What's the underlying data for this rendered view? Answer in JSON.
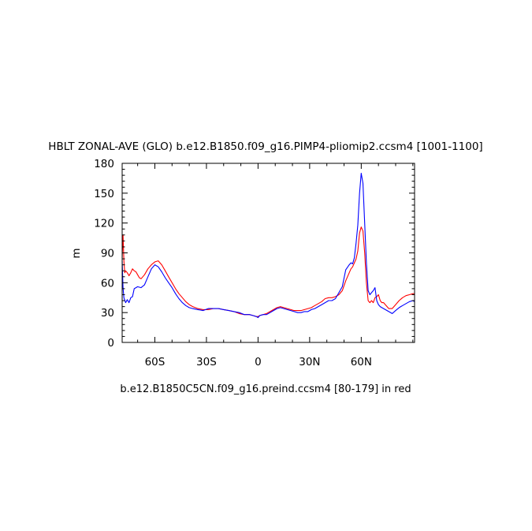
{
  "chart_data": {
    "type": "line",
    "title": "HBLT ZONAL-AVE (GLO) b.e12.B1850.f09_g16.PIMP4-pliomip2.ccsm4 [1001-1100]",
    "subtitle": "b.e12.B1850C5CN.f09_g16.preind.ccsm4 [80-179] in red",
    "xlabel": "",
    "ylabel": "m",
    "xlim": [
      -79,
      91
    ],
    "ylim": [
      0,
      180
    ],
    "x_ticks": [
      {
        "value": -60,
        "label": "60S"
      },
      {
        "value": -30,
        "label": "30S"
      },
      {
        "value": 0,
        "label": "0"
      },
      {
        "value": 30,
        "label": "30N"
      },
      {
        "value": 60,
        "label": "60N"
      }
    ],
    "y_ticks": [
      {
        "value": 0,
        "label": "0"
      },
      {
        "value": 30,
        "label": "30"
      },
      {
        "value": 60,
        "label": "60"
      },
      {
        "value": 90,
        "label": "90"
      },
      {
        "value": 120,
        "label": "120"
      },
      {
        "value": 150,
        "label": "150"
      },
      {
        "value": 180,
        "label": "180"
      }
    ],
    "grid": false,
    "series": [
      {
        "color": "#0000ff",
        "x": [
          -79,
          -78.5,
          -78,
          -77,
          -76,
          -75,
          -74,
          -73,
          -72,
          -71,
          -70,
          -68,
          -66,
          -64,
          -62,
          -60,
          -58,
          -56,
          -54,
          -52,
          -50,
          -48,
          -46,
          -44,
          -42,
          -40,
          -38,
          -35,
          -32,
          -29,
          -26,
          -23,
          -20,
          -17,
          -14,
          -11,
          -8,
          -5,
          -3,
          -1,
          0,
          1,
          3,
          5,
          7,
          9,
          11,
          13,
          15,
          17,
          19,
          21,
          23,
          25,
          27,
          29,
          31,
          33,
          35,
          37,
          39,
          41,
          43,
          45,
          47,
          49,
          51,
          53,
          54,
          55,
          56,
          57,
          58,
          59,
          60,
          61,
          62,
          63,
          64,
          65,
          66,
          67,
          68,
          69,
          70,
          71,
          72,
          73,
          74,
          76,
          78,
          80,
          82,
          84,
          86,
          88,
          90,
          91
        ],
        "y": [
          82,
          55,
          45,
          40,
          43,
          40,
          45,
          46,
          54,
          55,
          56,
          55,
          58,
          66,
          74,
          78,
          76,
          71,
          65,
          60,
          55,
          49,
          44,
          40,
          37,
          35,
          34,
          33,
          32,
          34,
          34,
          34,
          33,
          32,
          31,
          30,
          28,
          28,
          27,
          26,
          25,
          27,
          28,
          28,
          30,
          32,
          34,
          35,
          34,
          33,
          32,
          31,
          30,
          30,
          31,
          31,
          33,
          34,
          36,
          38,
          40,
          42,
          42,
          44,
          50,
          56,
          73,
          78,
          80,
          79,
          85,
          100,
          118,
          150,
          170,
          160,
          120,
          80,
          52,
          48,
          50,
          52,
          55,
          42,
          38,
          36,
          35,
          34,
          33,
          31,
          29,
          32,
          35,
          37,
          39,
          41,
          42,
          41
        ]
      },
      {
        "color": "#ff0000",
        "x": [
          -79,
          -78.5,
          -78,
          -77.5,
          -77,
          -76,
          -75,
          -74,
          -73,
          -72,
          -71,
          -70,
          -69,
          -68,
          -66,
          -64,
          -62,
          -60,
          -58,
          -56,
          -54,
          -52,
          -50,
          -48,
          -46,
          -44,
          -42,
          -40,
          -38,
          -35,
          -32,
          -29,
          -26,
          -23,
          -20,
          -17,
          -14,
          -11,
          -8,
          -5,
          -3,
          -1,
          0,
          1,
          3,
          5,
          7,
          9,
          11,
          13,
          15,
          17,
          19,
          21,
          23,
          25,
          27,
          29,
          31,
          33,
          35,
          37,
          39,
          41,
          43,
          45,
          47,
          49,
          51,
          53,
          54,
          55,
          56,
          57,
          58,
          59,
          60,
          61,
          62,
          63,
          64,
          65,
          66,
          67,
          68,
          69,
          70,
          71,
          72,
          73,
          74,
          76,
          78,
          80,
          82,
          84,
          86,
          88,
          90,
          91
        ],
        "y": [
          85,
          108,
          82,
          70,
          72,
          70,
          67,
          70,
          74,
          72,
          71,
          68,
          65,
          64,
          68,
          74,
          78,
          81,
          82,
          78,
          72,
          66,
          60,
          54,
          49,
          45,
          41,
          38,
          36,
          34,
          33,
          33,
          34,
          34,
          33,
          32,
          31,
          29,
          28,
          28,
          27,
          26,
          26,
          27,
          28,
          29,
          31,
          33,
          35,
          36,
          35,
          34,
          33,
          32,
          32,
          32,
          33,
          34,
          35,
          37,
          39,
          41,
          44,
          45,
          45,
          46,
          48,
          52,
          62,
          70,
          74,
          76,
          80,
          84,
          92,
          110,
          116,
          112,
          90,
          60,
          42,
          40,
          42,
          40,
          45,
          46,
          48,
          42,
          40,
          40,
          38,
          34,
          34,
          38,
          42,
          45,
          47,
          48,
          49,
          49
        ]
      }
    ]
  }
}
